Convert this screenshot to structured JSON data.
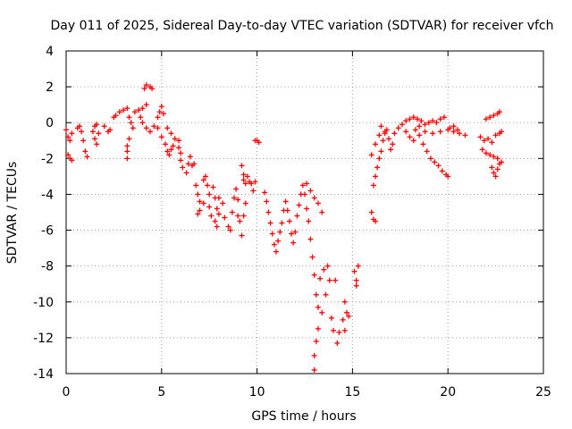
{
  "chart_data": {
    "type": "scatter",
    "title": "Day 011 of 2025, Sidereal Day-to-day VTEC variation (SDTVAR) for receiver vfch",
    "xlabel": "GPS time / hours",
    "ylabel": "SDTVAR / TECUs",
    "xlim": [
      0,
      25
    ],
    "ylim": [
      -14,
      4
    ],
    "xticks": [
      0,
      5,
      10,
      15,
      20,
      25
    ],
    "yticks": [
      -14,
      -12,
      -10,
      -8,
      -6,
      -4,
      -2,
      0,
      2,
      4
    ],
    "grid": true,
    "marker": "plus",
    "color": "#ff0000",
    "series": [
      {
        "points": [
          [
            0.0,
            -0.4
          ],
          [
            0.1,
            -0.8
          ],
          [
            0.2,
            -1.0
          ],
          [
            0.3,
            -0.6
          ],
          [
            0.1,
            -1.8
          ],
          [
            0.2,
            -2.0
          ],
          [
            0.3,
            -2.1
          ],
          [
            0.6,
            -0.3
          ],
          [
            0.8,
            -0.5
          ],
          [
            0.9,
            -1.0
          ],
          [
            1.0,
            -1.6
          ],
          [
            1.1,
            -1.9
          ],
          [
            0.7,
            -0.2
          ],
          [
            1.4,
            -0.5
          ],
          [
            1.5,
            -0.2
          ],
          [
            1.5,
            -0.9
          ],
          [
            1.6,
            -1.2
          ],
          [
            1.7,
            -0.6
          ],
          [
            1.6,
            -0.1
          ],
          [
            2.0,
            -0.2
          ],
          [
            2.2,
            -0.5
          ],
          [
            2.3,
            -0.4
          ],
          [
            2.5,
            0.3
          ],
          [
            2.6,
            0.4
          ],
          [
            2.8,
            0.6
          ],
          [
            3.0,
            0.7
          ],
          [
            3.2,
            0.8
          ],
          [
            3.3,
            0.3
          ],
          [
            3.4,
            0.0
          ],
          [
            3.5,
            -0.3
          ],
          [
            3.3,
            -0.9
          ],
          [
            3.2,
            -1.3
          ],
          [
            3.2,
            -1.6
          ],
          [
            3.2,
            -2.0
          ],
          [
            3.6,
            0.6
          ],
          [
            3.8,
            0.7
          ],
          [
            4.0,
            0.8
          ],
          [
            4.2,
            1.0
          ],
          [
            4.1,
            1.9
          ],
          [
            4.2,
            2.1
          ],
          [
            4.4,
            2.0
          ],
          [
            4.5,
            1.9
          ],
          [
            3.9,
            0.3
          ],
          [
            4.0,
            0.0
          ],
          [
            4.2,
            -0.3
          ],
          [
            4.4,
            -0.5
          ],
          [
            4.6,
            -0.2
          ],
          [
            4.8,
            0.3
          ],
          [
            4.9,
            0.6
          ],
          [
            5.0,
            0.9
          ],
          [
            5.1,
            0.5
          ],
          [
            4.8,
            -0.3
          ],
          [
            5.0,
            -0.8
          ],
          [
            5.2,
            -1.2
          ],
          [
            5.3,
            -1.6
          ],
          [
            5.4,
            -1.8
          ],
          [
            5.5,
            -1.5
          ],
          [
            5.6,
            -1.3
          ],
          [
            5.3,
            -0.3
          ],
          [
            5.5,
            -0.6
          ],
          [
            5.7,
            -0.9
          ],
          [
            5.9,
            -1.0
          ],
          [
            5.9,
            -1.4
          ],
          [
            6.0,
            -1.7
          ],
          [
            6.0,
            -2.1
          ],
          [
            6.1,
            -2.5
          ],
          [
            6.3,
            -2.8
          ],
          [
            6.4,
            -2.3
          ],
          [
            6.5,
            -1.9
          ],
          [
            6.6,
            -2.4
          ],
          [
            6.7,
            -2.3
          ],
          [
            6.8,
            -3.5
          ],
          [
            6.9,
            -4.0
          ],
          [
            7.0,
            -4.4
          ],
          [
            7.0,
            -4.9
          ],
          [
            6.9,
            -5.1
          ],
          [
            7.2,
            -4.5
          ],
          [
            7.2,
            -3.2
          ],
          [
            7.3,
            -3.0
          ],
          [
            7.4,
            -3.5
          ],
          [
            7.5,
            -4.0
          ],
          [
            7.5,
            -4.7
          ],
          [
            7.6,
            -5.2
          ],
          [
            7.8,
            -5.5
          ],
          [
            7.9,
            -5.8
          ],
          [
            8.0,
            -5.1
          ],
          [
            8.0,
            -4.2
          ],
          [
            7.7,
            -3.6
          ],
          [
            7.8,
            -4.2
          ],
          [
            7.9,
            -4.8
          ],
          [
            8.2,
            -4.5
          ],
          [
            8.3,
            -5.3
          ],
          [
            8.5,
            -5.8
          ],
          [
            8.6,
            -6.0
          ],
          [
            8.7,
            -5.0
          ],
          [
            8.8,
            -4.2
          ],
          [
            8.9,
            -3.7
          ],
          [
            9.0,
            -4.3
          ],
          [
            9.0,
            -5.2
          ],
          [
            9.1,
            -5.5
          ],
          [
            9.2,
            -6.3
          ],
          [
            9.3,
            -5.2
          ],
          [
            9.4,
            -4.5
          ],
          [
            9.3,
            -3.2
          ],
          [
            9.2,
            -2.4
          ],
          [
            9.3,
            -2.9
          ],
          [
            9.4,
            -3.4
          ],
          [
            9.5,
            -3.0
          ],
          [
            9.6,
            -3.3
          ],
          [
            9.7,
            -3.4
          ],
          [
            9.8,
            -3.8
          ],
          [
            9.9,
            -3.3
          ],
          [
            9.9,
            -1.0
          ],
          [
            10.0,
            -1.0
          ],
          [
            10.1,
            -1.1
          ],
          [
            10.4,
            -3.9
          ],
          [
            10.5,
            -4.4
          ],
          [
            10.6,
            -5.0
          ],
          [
            10.7,
            -5.6
          ],
          [
            10.8,
            -6.2
          ],
          [
            10.9,
            -6.8
          ],
          [
            11.0,
            -7.2
          ],
          [
            11.1,
            -6.6
          ],
          [
            11.2,
            -6.1
          ],
          [
            11.3,
            -5.6
          ],
          [
            11.4,
            -4.9
          ],
          [
            11.5,
            -4.4
          ],
          [
            11.6,
            -4.9
          ],
          [
            11.7,
            -5.5
          ],
          [
            11.8,
            -6.2
          ],
          [
            11.9,
            -6.7
          ],
          [
            12.0,
            -6.1
          ],
          [
            12.1,
            -5.2
          ],
          [
            12.2,
            -4.6
          ],
          [
            12.3,
            -4.0
          ],
          [
            12.4,
            -3.5
          ],
          [
            12.5,
            -4.0
          ],
          [
            12.6,
            -4.8
          ],
          [
            12.7,
            -5.5
          ],
          [
            12.8,
            -6.5
          ],
          [
            12.9,
            -7.5
          ],
          [
            13.0,
            -8.5
          ],
          [
            13.1,
            -9.6
          ],
          [
            13.2,
            -10.3
          ],
          [
            13.2,
            -11.5
          ],
          [
            13.1,
            -12.2
          ],
          [
            13.0,
            -13.0
          ],
          [
            13.0,
            -13.8
          ],
          [
            12.6,
            -3.4
          ],
          [
            12.8,
            -3.8
          ],
          [
            13.0,
            -4.2
          ],
          [
            13.2,
            -4.5
          ],
          [
            13.4,
            -5.0
          ],
          [
            13.3,
            -8.7
          ],
          [
            13.5,
            -8.2
          ],
          [
            13.7,
            -8.0
          ],
          [
            13.8,
            -8.8
          ],
          [
            13.6,
            -9.6
          ],
          [
            13.4,
            -10.6
          ],
          [
            13.9,
            -10.9
          ],
          [
            14.0,
            -11.6
          ],
          [
            14.2,
            -12.3
          ],
          [
            14.3,
            -11.7
          ],
          [
            14.5,
            -11.0
          ],
          [
            14.6,
            -11.6
          ],
          [
            14.7,
            -10.6
          ],
          [
            14.1,
            -8.8
          ],
          [
            14.6,
            -10.0
          ],
          [
            14.8,
            -10.8
          ],
          [
            15.1,
            -8.3
          ],
          [
            15.2,
            -8.8
          ],
          [
            15.3,
            -8.0
          ],
          [
            15.2,
            -9.1
          ],
          [
            16.0,
            -5.0
          ],
          [
            16.1,
            -5.4
          ],
          [
            16.2,
            -5.5
          ],
          [
            16.1,
            -3.5
          ],
          [
            16.2,
            -3.0
          ],
          [
            16.3,
            -2.5
          ],
          [
            16.4,
            -2.0
          ],
          [
            16.5,
            -1.6
          ],
          [
            16.6,
            -1.0
          ],
          [
            16.7,
            -0.6
          ],
          [
            16.8,
            -0.4
          ],
          [
            16.9,
            -0.9
          ],
          [
            17.0,
            -1.5
          ],
          [
            17.1,
            -1.2
          ],
          [
            16.0,
            -1.8
          ],
          [
            16.2,
            -1.2
          ],
          [
            16.4,
            -0.7
          ],
          [
            16.5,
            -0.2
          ],
          [
            16.7,
            -0.5
          ],
          [
            17.2,
            -0.6
          ],
          [
            17.4,
            -0.3
          ],
          [
            17.6,
            -0.1
          ],
          [
            17.8,
            0.1
          ],
          [
            18.0,
            0.2
          ],
          [
            18.2,
            0.3
          ],
          [
            18.4,
            0.2
          ],
          [
            18.6,
            0.1
          ],
          [
            18.8,
            -0.1
          ],
          [
            19.0,
            0.0
          ],
          [
            19.2,
            0.1
          ],
          [
            19.4,
            0.0
          ],
          [
            19.6,
            0.2
          ],
          [
            19.8,
            0.3
          ],
          [
            17.8,
            -0.5
          ],
          [
            18.0,
            -0.8
          ],
          [
            18.2,
            -1.0
          ],
          [
            18.3,
            -0.4
          ],
          [
            18.5,
            -0.7
          ],
          [
            18.7,
            -1.2
          ],
          [
            18.9,
            -1.6
          ],
          [
            19.1,
            -2.0
          ],
          [
            19.3,
            -2.2
          ],
          [
            19.5,
            -2.4
          ],
          [
            19.7,
            -2.7
          ],
          [
            19.9,
            -2.9
          ],
          [
            20.0,
            -3.0
          ],
          [
            18.5,
            -0.2
          ],
          [
            18.8,
            -0.5
          ],
          [
            19.2,
            -0.6
          ],
          [
            19.6,
            -0.5
          ],
          [
            20.0,
            -0.4
          ],
          [
            20.3,
            -0.5
          ],
          [
            20.6,
            -0.6
          ],
          [
            20.9,
            -0.7
          ],
          [
            20.1,
            -0.3
          ],
          [
            20.3,
            -0.2
          ],
          [
            20.5,
            -0.4
          ],
          [
            21.7,
            -0.8
          ],
          [
            21.9,
            -1.0
          ],
          [
            22.1,
            -0.9
          ],
          [
            22.3,
            -1.1
          ],
          [
            22.5,
            -0.7
          ],
          [
            22.7,
            -0.6
          ],
          [
            22.8,
            -0.5
          ],
          [
            21.8,
            -1.5
          ],
          [
            22.0,
            -1.7
          ],
          [
            22.2,
            -1.8
          ],
          [
            22.4,
            -1.9
          ],
          [
            22.6,
            -2.0
          ],
          [
            22.8,
            -2.2
          ],
          [
            22.3,
            -2.5
          ],
          [
            22.4,
            -2.8
          ],
          [
            22.5,
            -3.0
          ],
          [
            22.6,
            -2.6
          ],
          [
            22.7,
            -2.3
          ],
          [
            22.0,
            0.2
          ],
          [
            22.2,
            0.3
          ],
          [
            22.4,
            0.4
          ],
          [
            22.6,
            0.5
          ],
          [
            22.7,
            0.6
          ]
        ]
      }
    ]
  }
}
